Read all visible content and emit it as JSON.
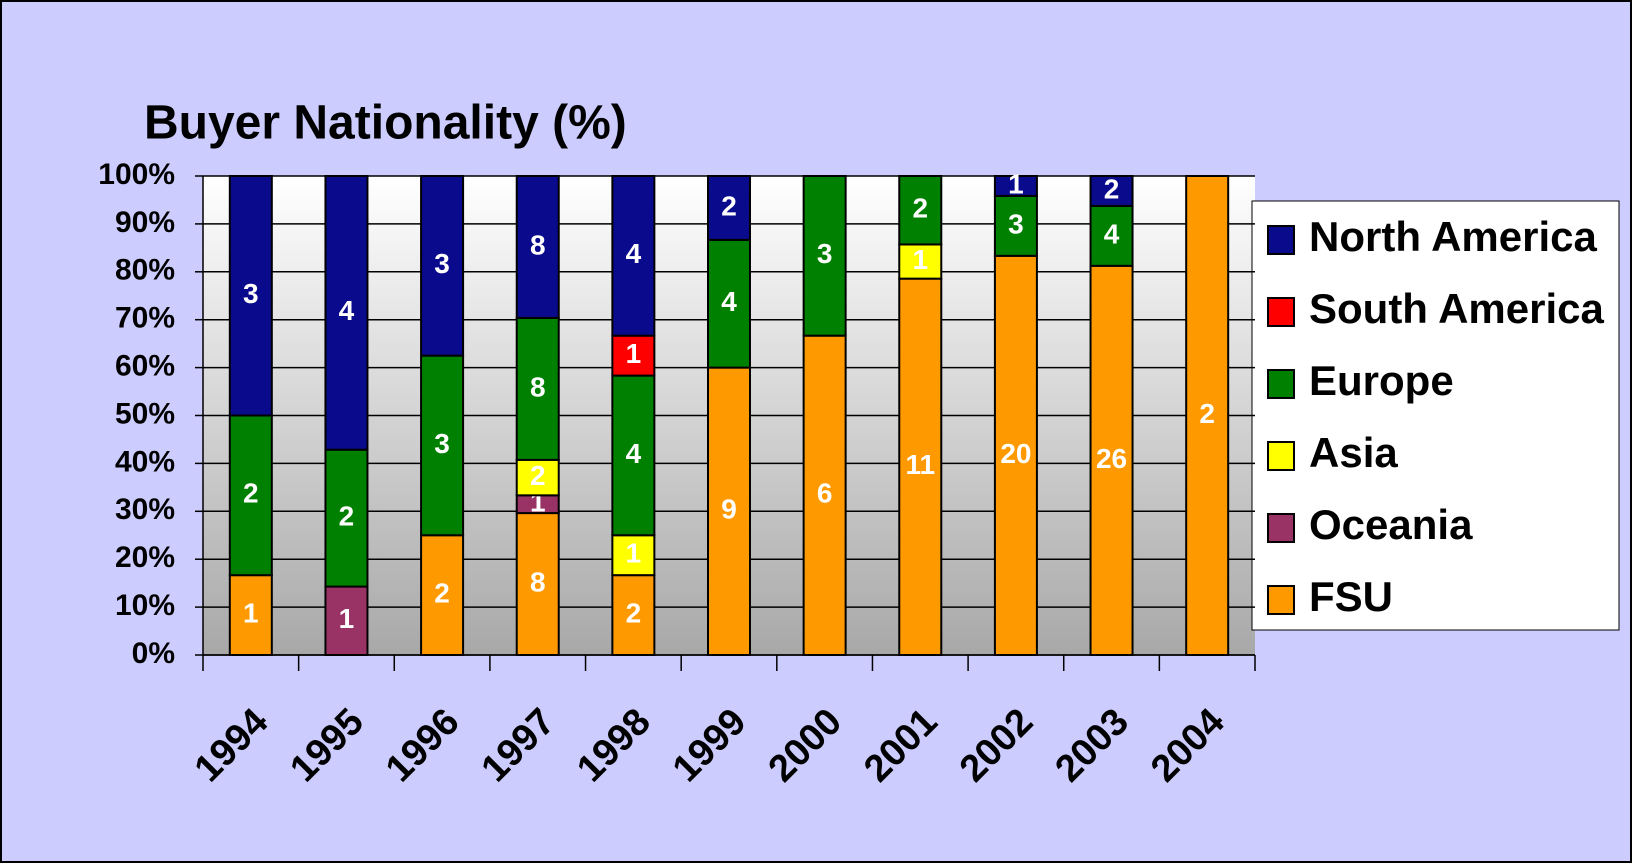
{
  "chart_data": {
    "type": "bar",
    "stacking": "percent",
    "title": "Buyer Nationality (%)",
    "categories": [
      "1994",
      "1995",
      "1996",
      "1997",
      "1998",
      "1999",
      "2000",
      "2001",
      "2002",
      "2003",
      "2004"
    ],
    "series": [
      {
        "name": "North America",
        "color": "#0a0a8c",
        "values": [
          3,
          4,
          3,
          8,
          4,
          2,
          null,
          null,
          1,
          2,
          null
        ]
      },
      {
        "name": "South America",
        "color": "#ff0000",
        "values": [
          null,
          null,
          null,
          null,
          1,
          null,
          null,
          null,
          null,
          null,
          null
        ]
      },
      {
        "name": "Europe",
        "color": "#008000",
        "values": [
          2,
          2,
          3,
          8,
          4,
          4,
          3,
          2,
          3,
          4,
          null
        ]
      },
      {
        "name": "Asia",
        "color": "#ffff00",
        "values": [
          null,
          null,
          null,
          2,
          1,
          null,
          null,
          1,
          null,
          null,
          null
        ]
      },
      {
        "name": "Oceania",
        "color": "#993366",
        "values": [
          null,
          1,
          null,
          1,
          null,
          null,
          null,
          null,
          null,
          null,
          null
        ]
      },
      {
        "name": "FSU",
        "color": "#ff9900",
        "values": [
          1,
          null,
          2,
          8,
          2,
          9,
          6,
          11,
          20,
          26,
          2
        ]
      }
    ],
    "ylim": [
      0,
      100
    ],
    "yticks": [
      {
        "value": 0,
        "label": "0%"
      },
      {
        "value": 10,
        "label": "10%"
      },
      {
        "value": 20,
        "label": "20%"
      },
      {
        "value": 30,
        "label": "30%"
      },
      {
        "value": 40,
        "label": "40%"
      },
      {
        "value": 50,
        "label": "50%"
      },
      {
        "value": 60,
        "label": "60%"
      },
      {
        "value": 70,
        "label": "70%"
      },
      {
        "value": 80,
        "label": "80%"
      },
      {
        "value": 90,
        "label": "90%"
      },
      {
        "value": 100,
        "label": "100%"
      }
    ],
    "grid": true,
    "legend": "right"
  }
}
